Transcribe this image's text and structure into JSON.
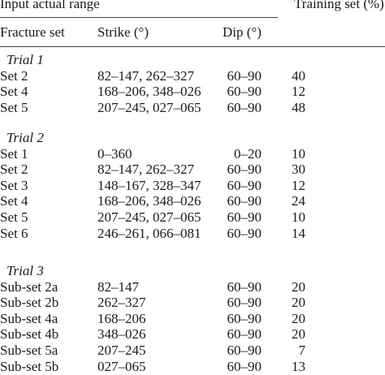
{
  "header": {
    "input_range": "Input actual range",
    "training_set": "Training set (%)",
    "fracture_set": "Fracture set",
    "strike": "Strike (°)",
    "dip": "Dip (°)"
  },
  "groups": [
    {
      "title": "Trial 1",
      "rows": [
        {
          "set": "Set 2",
          "strike": "82–147, 262–327",
          "dip": "60–90",
          "training": "40"
        },
        {
          "set": "Set 4",
          "strike": "168–206, 348–026",
          "dip": "60–90",
          "training": "12"
        },
        {
          "set": "Set 5",
          "strike": "207–245, 027–065",
          "dip": "60–90",
          "training": "48"
        }
      ]
    },
    {
      "title": "Trial 2",
      "rows": [
        {
          "set": "Set 1",
          "strike": "0–360",
          "dip": "0–20",
          "training": "10"
        },
        {
          "set": "Set 2",
          "strike": "82–147, 262–327",
          "dip": "60–90",
          "training": "30"
        },
        {
          "set": "Set 3",
          "strike": "148–167, 328–347",
          "dip": "60–90",
          "training": "12"
        },
        {
          "set": "Set 4",
          "strike": "168–206, 348–026",
          "dip": "60–90",
          "training": "24"
        },
        {
          "set": "Set 5",
          "strike": "207–245, 027–065",
          "dip": "60–90",
          "training": "10"
        },
        {
          "set": "Set 6",
          "strike": "246–261, 066–081",
          "dip": "60–90",
          "training": "14"
        }
      ]
    },
    {
      "title": "Trial 3",
      "rows": [
        {
          "set": "Sub-set 2a",
          "strike": "82–147",
          "dip": "60–90",
          "training": "20"
        },
        {
          "set": "Sub-set 2b",
          "strike": "262–327",
          "dip": "60–90",
          "training": "20"
        },
        {
          "set": "Sub-set 4a",
          "strike": "168–206",
          "dip": "60–90",
          "training": "20"
        },
        {
          "set": "Sub-set 4b",
          "strike": "348–026",
          "dip": "60–90",
          "training": "20"
        },
        {
          "set": "Sub-set 5a",
          "strike": "207–245",
          "dip": "60–90",
          "training": "7"
        },
        {
          "set": "Sub-set 5b",
          "strike": "027–065",
          "dip": "60–90",
          "training": "13"
        }
      ]
    }
  ]
}
